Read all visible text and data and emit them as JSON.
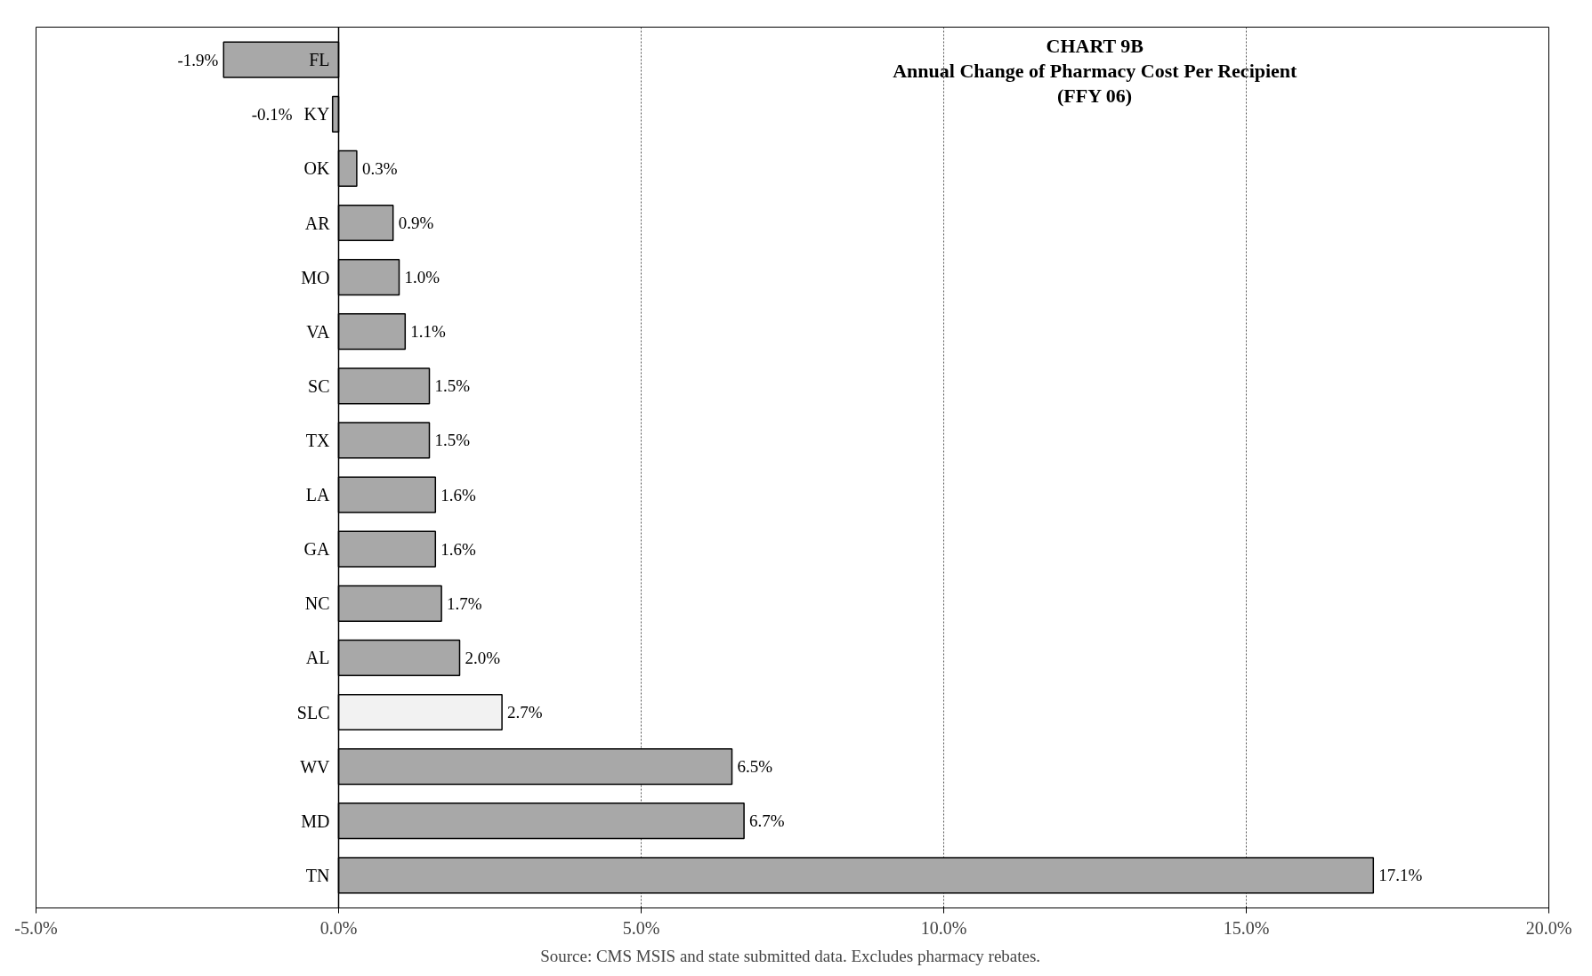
{
  "chart_data": {
    "type": "bar",
    "orientation": "horizontal",
    "title": "CHART 9B",
    "subtitle": "Annual Change of Pharmacy Cost Per Recipient\n(FFY 06)",
    "categories": [
      "FL",
      "KY",
      "OK",
      "AR",
      "MO",
      "VA",
      "SC",
      "TX",
      "LA",
      "GA",
      "NC",
      "AL",
      "SLC",
      "WV",
      "MD",
      "TN"
    ],
    "values": [
      -1.9,
      -0.1,
      0.3,
      0.9,
      1.0,
      1.1,
      1.5,
      1.5,
      1.6,
      1.6,
      1.7,
      2.0,
      2.7,
      6.5,
      6.7,
      17.1
    ],
    "value_labels": [
      "-1.9%",
      "-0.1%",
      "0.3%",
      "0.9%",
      "1.0%",
      "1.1%",
      "1.5%",
      "1.5%",
      "1.6%",
      "1.6%",
      "1.7%",
      "2.0%",
      "2.7%",
      "6.5%",
      "6.7%",
      "17.1%"
    ],
    "colors": [
      "#a8a8a8",
      "#a8a8a8",
      "#a8a8a8",
      "#a8a8a8",
      "#a8a8a8",
      "#a8a8a8",
      "#a8a8a8",
      "#a8a8a8",
      "#a8a8a8",
      "#a8a8a8",
      "#a8a8a8",
      "#a8a8a8",
      "#f2f2f2",
      "#a8a8a8",
      "#a8a8a8",
      "#a8a8a8"
    ],
    "xlim": [
      -5,
      20
    ],
    "xticks": [
      {
        "value": -5,
        "label": "-5.0%"
      },
      {
        "value": 0,
        "label": "0.0%"
      },
      {
        "value": 5,
        "label": "5.0%"
      },
      {
        "value": 10,
        "label": "10.0%"
      },
      {
        "value": 15,
        "label": "15.0%"
      },
      {
        "value": 20,
        "label": "20.0%"
      }
    ],
    "grid": "x",
    "annotations": [
      "Source: CMS MSIS and state submitted data.  Excludes pharmacy rebates."
    ]
  }
}
